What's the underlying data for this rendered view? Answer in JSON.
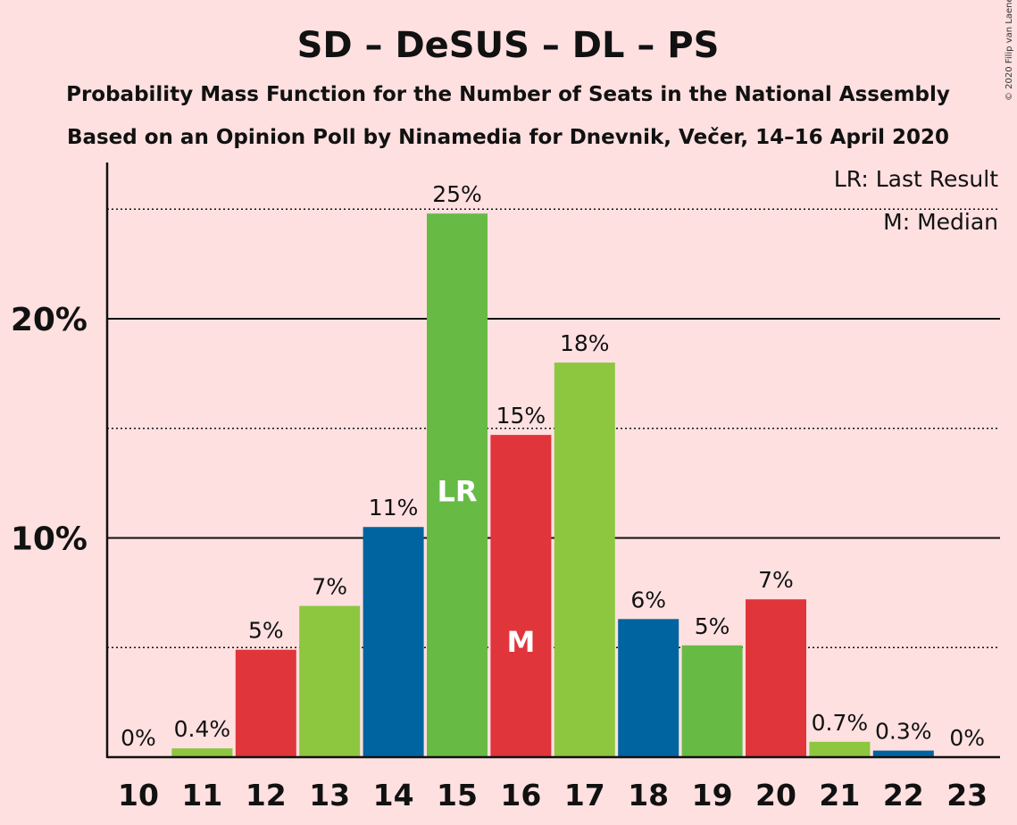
{
  "chart_data": {
    "type": "bar",
    "title": "SD – DeSUS – DL – PS",
    "subtitle1": "Probability Mass Function for the Number of Seats in the National Assembly",
    "subtitle2": "Based on an Opinion Poll by Ninamedia for Dnevnik, Večer, 14–16 April 2020",
    "copyright": "© 2020 Filip van Laenen",
    "legend": {
      "lr": "LR: Last Result",
      "m": "M: Median"
    },
    "categories": [
      "10",
      "11",
      "12",
      "13",
      "14",
      "15",
      "16",
      "17",
      "18",
      "19",
      "20",
      "21",
      "22",
      "23"
    ],
    "values": [
      0,
      0.4,
      4.9,
      6.9,
      10.5,
      24.8,
      14.7,
      18.0,
      6.3,
      5.1,
      7.2,
      0.7,
      0.3,
      0
    ],
    "labels": [
      "0%",
      "0.4%",
      "5%",
      "7%",
      "11%",
      "25%",
      "15%",
      "18%",
      "6%",
      "5%",
      "7%",
      "0.7%",
      "0.3%",
      "0%"
    ],
    "colors": [
      "#D8EEB0",
      "#8DC63F",
      "#E0353B",
      "#8DC63F",
      "#0064A0",
      "#67BB45",
      "#E0353B",
      "#8DC63F",
      "#0064A0",
      "#67BB45",
      "#E0353B",
      "#8DC63F",
      "#0064A0",
      "#67BB45"
    ],
    "markers": {
      "15": "LR",
      "16": "M"
    },
    "ylim": [
      0,
      27
    ],
    "yticks": [
      {
        "value": 10,
        "label": "10%"
      },
      {
        "value": 20,
        "label": "20%"
      }
    ],
    "minor_gridlines": [
      5,
      15,
      25
    ]
  }
}
